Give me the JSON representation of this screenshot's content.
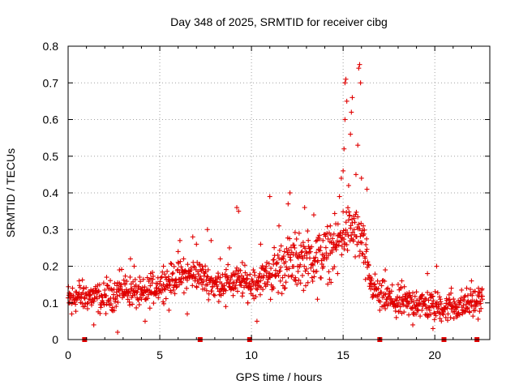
{
  "chart_data": {
    "type": "scatter",
    "title": "Day 348 of 2025, SRMTID for receiver cibg",
    "xlabel": "GPS time / hours",
    "ylabel": "SRMTID / TECUs",
    "xlim": [
      0,
      23
    ],
    "ylim": [
      0,
      0.8
    ],
    "x_ticks": [
      0,
      5,
      10,
      15,
      20
    ],
    "y_ticks": [
      0,
      0.1,
      0.2,
      0.3,
      0.4,
      0.5,
      0.6,
      0.7,
      0.8
    ],
    "x_tick_labels": [
      "0",
      "5",
      "10",
      "15",
      "20"
    ],
    "y_tick_labels": [
      "0",
      "0.1",
      "0.2",
      "0.3",
      "0.4",
      "0.5",
      "0.6",
      "0.7",
      "0.8"
    ],
    "grid": true,
    "marker": "+",
    "color": "#e00000",
    "data_gap_marks_x": [
      0.9,
      7.2,
      9.9,
      17.0,
      20.5,
      22.3
    ],
    "trend": [
      {
        "x": 0.0,
        "y": 0.11
      },
      {
        "x": 1.0,
        "y": 0.12
      },
      {
        "x": 2.0,
        "y": 0.11
      },
      {
        "x": 3.0,
        "y": 0.14
      },
      {
        "x": 4.0,
        "y": 0.12
      },
      {
        "x": 5.0,
        "y": 0.15
      },
      {
        "x": 6.0,
        "y": 0.17
      },
      {
        "x": 7.0,
        "y": 0.18
      },
      {
        "x": 8.0,
        "y": 0.15
      },
      {
        "x": 9.0,
        "y": 0.16
      },
      {
        "x": 10.0,
        "y": 0.15
      },
      {
        "x": 11.0,
        "y": 0.18
      },
      {
        "x": 12.0,
        "y": 0.21
      },
      {
        "x": 13.0,
        "y": 0.22
      },
      {
        "x": 14.0,
        "y": 0.23
      },
      {
        "x": 14.5,
        "y": 0.25
      },
      {
        "x": 15.0,
        "y": 0.29
      },
      {
        "x": 15.5,
        "y": 0.3
      },
      {
        "x": 16.0,
        "y": 0.27
      },
      {
        "x": 16.5,
        "y": 0.15
      },
      {
        "x": 17.0,
        "y": 0.12
      },
      {
        "x": 18.0,
        "y": 0.1
      },
      {
        "x": 19.0,
        "y": 0.1
      },
      {
        "x": 20.0,
        "y": 0.09
      },
      {
        "x": 21.0,
        "y": 0.09
      },
      {
        "x": 22.0,
        "y": 0.1
      },
      {
        "x": 22.6,
        "y": 0.11
      }
    ],
    "points": [
      {
        "x": 0.05,
        "y": 0.1
      },
      {
        "x": 0.2,
        "y": 0.07
      },
      {
        "x": 0.4,
        "y": 0.13
      },
      {
        "x": 0.6,
        "y": 0.16
      },
      {
        "x": 0.9,
        "y": 0.09
      },
      {
        "x": 1.2,
        "y": 0.12
      },
      {
        "x": 1.5,
        "y": 0.14
      },
      {
        "x": 1.4,
        "y": 0.04
      },
      {
        "x": 1.8,
        "y": 0.1
      },
      {
        "x": 2.1,
        "y": 0.17
      },
      {
        "x": 2.4,
        "y": 0.08
      },
      {
        "x": 2.7,
        "y": 0.02
      },
      {
        "x": 2.8,
        "y": 0.19
      },
      {
        "x": 3.1,
        "y": 0.15
      },
      {
        "x": 3.4,
        "y": 0.22
      },
      {
        "x": 3.6,
        "y": 0.2
      },
      {
        "x": 4.0,
        "y": 0.11
      },
      {
        "x": 4.2,
        "y": 0.05
      },
      {
        "x": 4.5,
        "y": 0.18
      },
      {
        "x": 4.8,
        "y": 0.14
      },
      {
        "x": 5.2,
        "y": 0.2
      },
      {
        "x": 5.5,
        "y": 0.08
      },
      {
        "x": 5.8,
        "y": 0.16
      },
      {
        "x": 6.0,
        "y": 0.24
      },
      {
        "x": 6.1,
        "y": 0.27
      },
      {
        "x": 6.3,
        "y": 0.22
      },
      {
        "x": 6.5,
        "y": 0.07
      },
      {
        "x": 6.8,
        "y": 0.28
      },
      {
        "x": 7.0,
        "y": 0.26
      },
      {
        "x": 7.3,
        "y": 0.15
      },
      {
        "x": 7.6,
        "y": 0.3
      },
      {
        "x": 7.8,
        "y": 0.27
      },
      {
        "x": 8.0,
        "y": 0.12
      },
      {
        "x": 8.3,
        "y": 0.22
      },
      {
        "x": 8.6,
        "y": 0.09
      },
      {
        "x": 8.8,
        "y": 0.25
      },
      {
        "x": 9.0,
        "y": 0.12
      },
      {
        "x": 9.2,
        "y": 0.36
      },
      {
        "x": 9.3,
        "y": 0.35
      },
      {
        "x": 9.5,
        "y": 0.21
      },
      {
        "x": 9.8,
        "y": 0.1
      },
      {
        "x": 10.1,
        "y": 0.19
      },
      {
        "x": 10.3,
        "y": 0.05
      },
      {
        "x": 10.5,
        "y": 0.26
      },
      {
        "x": 10.8,
        "y": 0.2
      },
      {
        "x": 11.0,
        "y": 0.39
      },
      {
        "x": 11.2,
        "y": 0.14
      },
      {
        "x": 11.5,
        "y": 0.31
      },
      {
        "x": 11.8,
        "y": 0.24
      },
      {
        "x": 12.0,
        "y": 0.37
      },
      {
        "x": 12.1,
        "y": 0.4
      },
      {
        "x": 12.4,
        "y": 0.16
      },
      {
        "x": 12.6,
        "y": 0.29
      },
      {
        "x": 12.9,
        "y": 0.36
      },
      {
        "x": 13.1,
        "y": 0.18
      },
      {
        "x": 13.4,
        "y": 0.34
      },
      {
        "x": 13.6,
        "y": 0.11
      },
      {
        "x": 13.9,
        "y": 0.27
      },
      {
        "x": 14.1,
        "y": 0.22
      },
      {
        "x": 14.3,
        "y": 0.31
      },
      {
        "x": 14.5,
        "y": 0.26
      },
      {
        "x": 14.7,
        "y": 0.18
      },
      {
        "x": 14.8,
        "y": 0.39
      },
      {
        "x": 14.9,
        "y": 0.44
      },
      {
        "x": 15.0,
        "y": 0.46
      },
      {
        "x": 15.05,
        "y": 0.52
      },
      {
        "x": 15.1,
        "y": 0.6
      },
      {
        "x": 15.1,
        "y": 0.7
      },
      {
        "x": 15.15,
        "y": 0.71
      },
      {
        "x": 15.2,
        "y": 0.65
      },
      {
        "x": 15.3,
        "y": 0.42
      },
      {
        "x": 15.4,
        "y": 0.56
      },
      {
        "x": 15.45,
        "y": 0.62
      },
      {
        "x": 15.5,
        "y": 0.66
      },
      {
        "x": 15.6,
        "y": 0.33
      },
      {
        "x": 15.7,
        "y": 0.45
      },
      {
        "x": 15.8,
        "y": 0.53
      },
      {
        "x": 15.85,
        "y": 0.74
      },
      {
        "x": 15.9,
        "y": 0.75
      },
      {
        "x": 15.95,
        "y": 0.7
      },
      {
        "x": 16.0,
        "y": 0.44
      },
      {
        "x": 16.1,
        "y": 0.31
      },
      {
        "x": 16.2,
        "y": 0.21
      },
      {
        "x": 16.3,
        "y": 0.41
      },
      {
        "x": 16.5,
        "y": 0.17
      },
      {
        "x": 16.8,
        "y": 0.14
      },
      {
        "x": 17.0,
        "y": 0.08
      },
      {
        "x": 17.3,
        "y": 0.19
      },
      {
        "x": 17.6,
        "y": 0.11
      },
      {
        "x": 17.9,
        "y": 0.06
      },
      {
        "x": 18.2,
        "y": 0.16
      },
      {
        "x": 18.5,
        "y": 0.09
      },
      {
        "x": 18.8,
        "y": 0.04
      },
      {
        "x": 19.0,
        "y": 0.13
      },
      {
        "x": 19.3,
        "y": 0.08
      },
      {
        "x": 19.6,
        "y": 0.18
      },
      {
        "x": 19.9,
        "y": 0.03
      },
      {
        "x": 20.1,
        "y": 0.2
      },
      {
        "x": 20.3,
        "y": 0.11
      },
      {
        "x": 20.6,
        "y": 0.06
      },
      {
        "x": 20.9,
        "y": 0.14
      },
      {
        "x": 21.2,
        "y": 0.09
      },
      {
        "x": 21.5,
        "y": 0.07
      },
      {
        "x": 21.8,
        "y": 0.12
      },
      {
        "x": 22.0,
        "y": 0.16
      },
      {
        "x": 22.2,
        "y": 0.08
      },
      {
        "x": 22.4,
        "y": 0.13
      },
      {
        "x": 22.6,
        "y": 0.11
      }
    ]
  }
}
